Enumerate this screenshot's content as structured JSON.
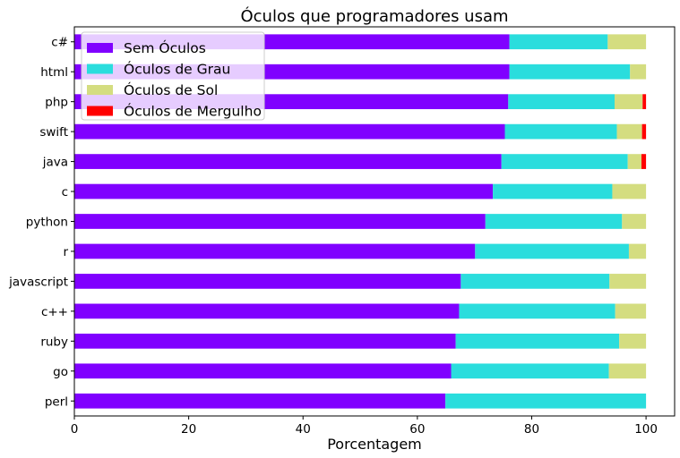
{
  "chart_data": {
    "type": "bar",
    "orientation": "horizontal",
    "stacked": true,
    "title": "Óculos que programadores usam",
    "xlabel": "Porcentagem",
    "ylabel": "",
    "xlim": [
      0,
      105
    ],
    "xticks": [
      0,
      20,
      40,
      60,
      80,
      100
    ],
    "grid": false,
    "legend_position": "top-left",
    "categories": [
      "c#",
      "html",
      "php",
      "swift",
      "java",
      "c",
      "python",
      "r",
      "javascript",
      "c++",
      "ruby",
      "go",
      "perl"
    ],
    "series": [
      {
        "name": "Sem Óculos",
        "color": "#8000ff",
        "values": [
          76.1,
          76.1,
          75.9,
          75.3,
          74.7,
          73.2,
          71.9,
          70.1,
          67.6,
          67.3,
          66.7,
          65.9,
          64.9
        ]
      },
      {
        "name": "Óculos de Grau",
        "color": "#2adddd",
        "values": [
          17.2,
          21.1,
          18.6,
          19.6,
          22.1,
          20.9,
          23.9,
          26.9,
          26.0,
          27.3,
          28.6,
          27.6,
          35.1
        ]
      },
      {
        "name": "Óculos de Sol",
        "color": "#d4dd80",
        "values": [
          6.7,
          2.8,
          4.9,
          4.4,
          2.4,
          5.9,
          4.2,
          3.0,
          6.4,
          5.4,
          4.7,
          6.5,
          0.0
        ]
      },
      {
        "name": "Óculos de Mergulho",
        "color": "#ff0000",
        "values": [
          0.0,
          0.0,
          0.6,
          0.7,
          0.8,
          0.0,
          0.0,
          0.0,
          0.0,
          0.0,
          0.0,
          0.0,
          0.0
        ]
      }
    ]
  }
}
